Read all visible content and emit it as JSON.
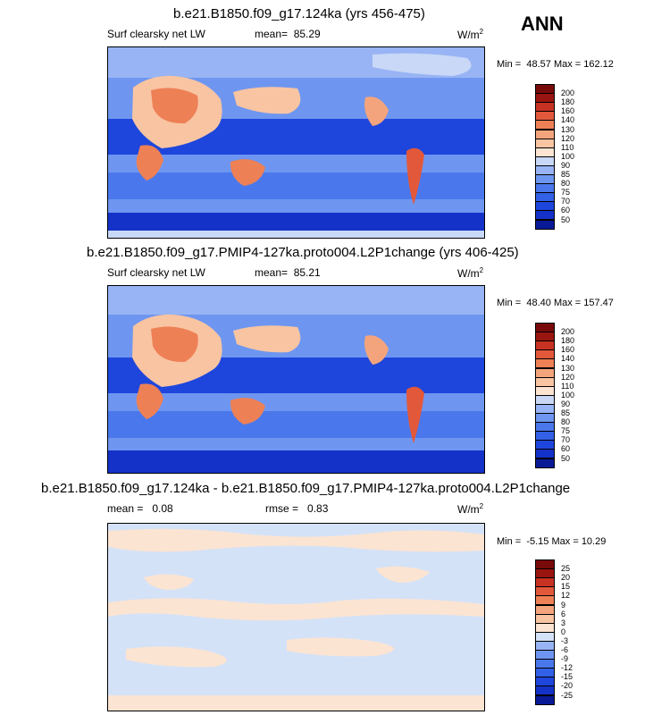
{
  "season": "ANN",
  "panels": [
    {
      "title": "b.e21.B1850.f09_g17.124ka (yrs 456-475)",
      "variable": "Surf clearsky net LW",
      "mean_label": "mean=",
      "mean_value": "85.29",
      "units": "W/m",
      "units_sup": "2",
      "min_label": "Min =",
      "min_value": "48.57",
      "max_label": "Max =",
      "max_value": "162.12",
      "cbar_labels": [
        "200",
        "180",
        "160",
        "140",
        "130",
        "120",
        "110",
        "100",
        "90",
        "85",
        "80",
        "75",
        "70",
        "60",
        "50"
      ]
    },
    {
      "title": "b.e21.B1850.f09_g17.PMIP4-127ka.proto004.L2P1change (yrs 406-425)",
      "variable": "Surf clearsky net LW",
      "mean_label": "mean=",
      "mean_value": "85.21",
      "units": "W/m",
      "units_sup": "2",
      "min_label": "Min =",
      "min_value": "48.40",
      "max_label": "Max =",
      "max_value": "157.47",
      "cbar_labels": [
        "200",
        "180",
        "160",
        "140",
        "130",
        "120",
        "110",
        "100",
        "90",
        "85",
        "80",
        "75",
        "70",
        "60",
        "50"
      ]
    },
    {
      "title": "b.e21.B1850.f09_g17.124ka - b.e21.B1850.f09_g17.PMIP4-127ka.proto004.L2P1change",
      "mean_label": "mean =",
      "mean_value": "0.08",
      "rmse_label": "rmse =",
      "rmse_value": "0.83",
      "units": "W/m",
      "units_sup": "2",
      "min_label": "Min =",
      "min_value": "-5.15",
      "max_label": "Max =",
      "max_value": "10.29",
      "cbar_labels": [
        "25",
        "20",
        "15",
        "12",
        "9",
        "6",
        "3",
        "0",
        "-3",
        "-6",
        "-9",
        "-12",
        "-15",
        "-20",
        "-25"
      ]
    }
  ],
  "colors": {
    "abs_scale": [
      "#0a1a96",
      "#1432c8",
      "#1e46dc",
      "#3260e6",
      "#4a78ec",
      "#6e96f0",
      "#98b4f4",
      "#c8d8f6",
      "#fbe4d2",
      "#f8c4a2",
      "#f4a47c",
      "#ee8056",
      "#e2583a",
      "#c83222",
      "#9a1410",
      "#780a0a"
    ],
    "diff_scale": [
      "#0a1a96",
      "#1432c8",
      "#1e46dc",
      "#3260e6",
      "#4a78ec",
      "#6e96f0",
      "#98b4f4",
      "#d4e2f8",
      "#fbe4d2",
      "#f8c4a2",
      "#f4a47c",
      "#ee8056",
      "#e2583a",
      "#c83222",
      "#9a1410",
      "#780a0a"
    ]
  }
}
